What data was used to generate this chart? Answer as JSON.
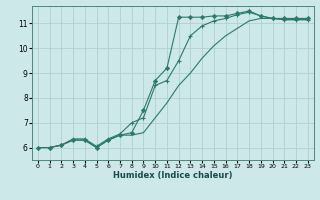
{
  "xlabel": "Humidex (Indice chaleur)",
  "ylabel": "",
  "background_color": "#cce8e8",
  "grid_color": "#b0d0d0",
  "line_color": "#2a7a6a",
  "xlim": [
    -0.5,
    23.5
  ],
  "ylim": [
    5.5,
    11.7
  ],
  "xticks": [
    0,
    1,
    2,
    3,
    4,
    5,
    6,
    7,
    8,
    9,
    10,
    11,
    12,
    13,
    14,
    15,
    16,
    17,
    18,
    19,
    20,
    21,
    22,
    23
  ],
  "yticks": [
    6,
    7,
    8,
    9,
    10,
    11
  ],
  "line1_x": [
    0,
    1,
    2,
    3,
    4,
    5,
    6,
    7,
    8,
    9,
    10,
    11,
    12,
    13,
    14,
    15,
    16,
    17,
    18,
    19,
    20,
    21,
    22,
    23
  ],
  "line1_y": [
    6.0,
    6.0,
    6.1,
    6.3,
    6.3,
    6.0,
    6.3,
    6.5,
    6.6,
    7.5,
    8.7,
    9.2,
    11.25,
    11.25,
    11.25,
    11.3,
    11.3,
    11.4,
    11.5,
    11.3,
    11.2,
    11.2,
    11.2,
    11.2
  ],
  "line2_x": [
    0,
    1,
    2,
    3,
    4,
    5,
    6,
    7,
    8,
    9,
    10,
    11,
    12,
    13,
    14,
    15,
    16,
    17,
    18,
    19,
    20,
    21,
    22,
    23
  ],
  "line2_y": [
    6.0,
    6.0,
    6.1,
    6.35,
    6.35,
    6.05,
    6.35,
    6.55,
    7.0,
    7.2,
    8.5,
    8.7,
    9.5,
    10.5,
    10.9,
    11.1,
    11.2,
    11.35,
    11.45,
    11.3,
    11.2,
    11.15,
    11.15,
    11.15
  ],
  "line3_x": [
    0,
    1,
    2,
    3,
    4,
    5,
    6,
    7,
    8,
    9,
    10,
    11,
    12,
    13,
    14,
    15,
    16,
    17,
    18,
    19,
    20,
    21,
    22,
    23
  ],
  "line3_y": [
    6.0,
    6.0,
    6.1,
    6.3,
    6.3,
    6.0,
    6.3,
    6.5,
    6.5,
    6.6,
    7.2,
    7.8,
    8.5,
    9.0,
    9.6,
    10.1,
    10.5,
    10.8,
    11.1,
    11.2,
    11.2,
    11.15,
    11.15,
    11.15
  ]
}
